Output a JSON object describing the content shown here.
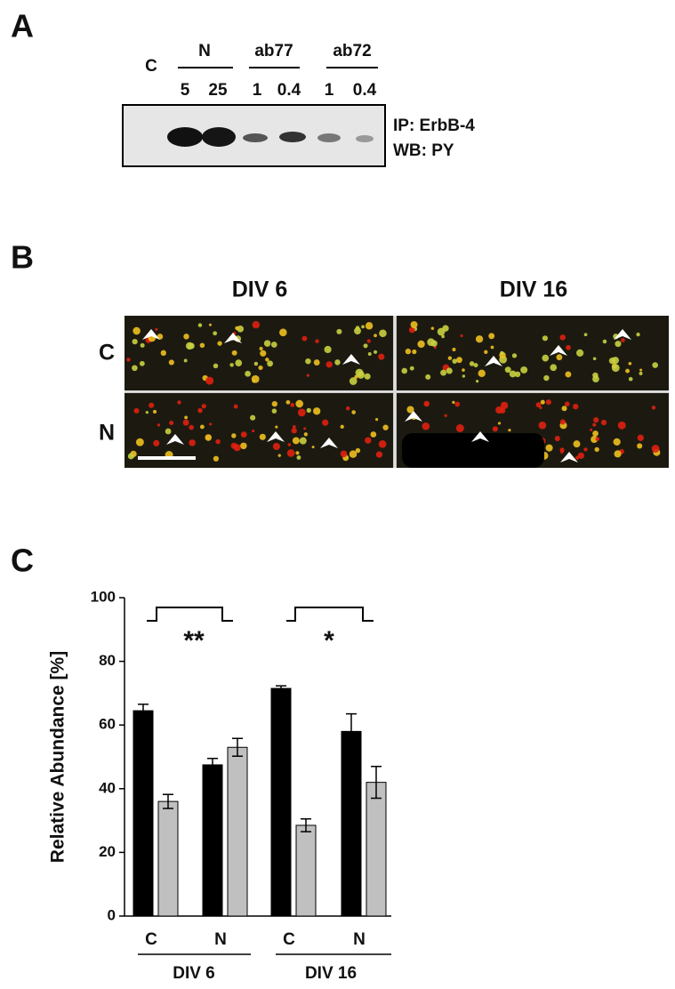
{
  "panel_a": {
    "letter": "A",
    "lanes": {
      "control": "C",
      "groups": [
        {
          "label": "N",
          "doses": [
            "5",
            "25"
          ]
        },
        {
          "label": "ab77",
          "doses": [
            "1",
            "0.4"
          ]
        },
        {
          "label": "ab72",
          "doses": [
            "1",
            "0.4"
          ]
        }
      ]
    },
    "blot_labels": [
      "IP: ErbB-4",
      "WB: PY"
    ]
  },
  "panel_b": {
    "letter": "B",
    "columns": [
      "DIV 6",
      "DIV 16"
    ],
    "rows": [
      "C",
      "N"
    ]
  },
  "panel_c": {
    "letter": "C"
  },
  "chart_data": {
    "type": "bar",
    "y_label": "Relative Abundance [%]",
    "categories": [
      "C",
      "N",
      "C",
      "N"
    ],
    "group_labels": [
      "DIV 6",
      "DIV 16"
    ],
    "series": [
      {
        "color": "#000000",
        "values": [
          64.5,
          47.5,
          71.5,
          58
        ],
        "errors": [
          2,
          2,
          0.8,
          5.5
        ]
      },
      {
        "color": "#c0c0c0",
        "values": [
          36,
          53,
          28.5,
          42
        ],
        "errors": [
          2.2,
          2.8,
          2,
          5
        ]
      }
    ],
    "significance": [
      "**",
      "*"
    ],
    "ylim": [
      0,
      100
    ],
    "yticks": [
      0,
      20,
      40,
      60,
      80,
      100
    ]
  }
}
